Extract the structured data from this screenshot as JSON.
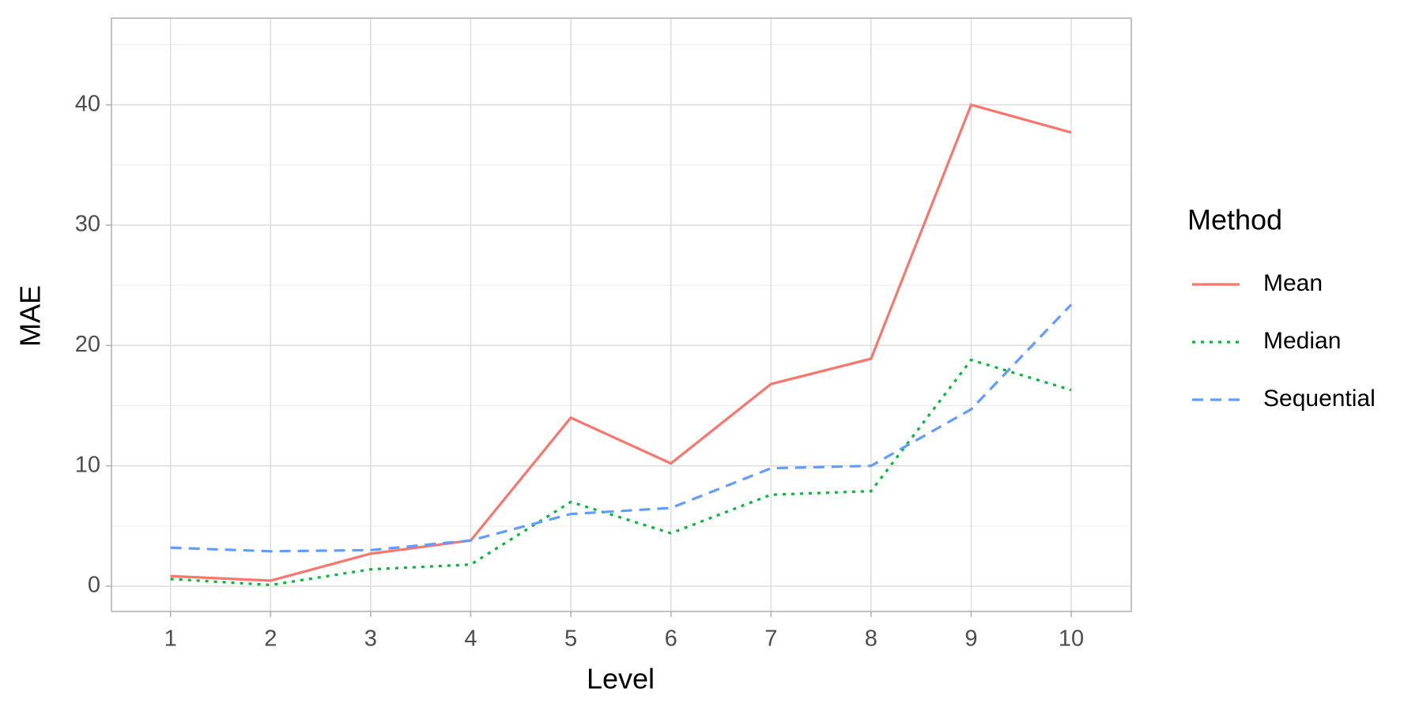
{
  "chart_data": {
    "type": "line",
    "x_label": "Level",
    "y_label": "MAE",
    "legend_title": "Method",
    "x": [
      1,
      2,
      3,
      4,
      5,
      6,
      7,
      8,
      9,
      10
    ],
    "series": [
      {
        "name": "Mean",
        "color": "#F8766D",
        "dash": "solid",
        "values": [
          0.84,
          0.46,
          2.7,
          3.8,
          14.0,
          10.2,
          16.8,
          18.9,
          40.0,
          37.7
        ]
      },
      {
        "name": "Median",
        "color": "#00BA38",
        "dash": "dotted",
        "values": [
          0.6,
          0.1,
          1.4,
          1.8,
          7.0,
          4.4,
          7.6,
          7.9,
          18.8,
          16.3
        ]
      },
      {
        "name": "Sequential",
        "color": "#619CFF",
        "dash": "dashed",
        "values": [
          3.2,
          2.9,
          3.0,
          3.8,
          6.0,
          6.5,
          9.8,
          10.0,
          14.7,
          23.4
        ]
      }
    ],
    "xlim": [
      0.41,
      10.6
    ],
    "xticks": [
      1,
      2,
      3,
      4,
      5,
      6,
      7,
      8,
      9,
      10
    ],
    "ylim": [
      -2.1,
      47.2
    ],
    "yticks": [
      0,
      10,
      20,
      30,
      40
    ],
    "grid": true,
    "legend": "right"
  }
}
